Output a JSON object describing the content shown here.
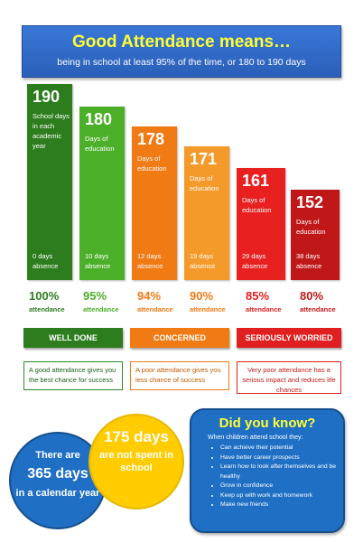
{
  "header": {
    "title": "Good Attendance means…",
    "subtitle": "being in school at least 95% of the time, or 180 to 190 days"
  },
  "bars": [
    {
      "days": "190",
      "desc": "School days in each academic year",
      "absence": "0 days absence",
      "pct": "100%",
      "attendance": "attendance",
      "color": "#2d7d1e",
      "pct_color": "#2d7d1e"
    },
    {
      "days": "180",
      "desc": "Days of education",
      "absence": "10 days absence",
      "pct": "95%",
      "attendance": "attendance",
      "color": "#4caf2a",
      "pct_color": "#4caf2a"
    },
    {
      "days": "178",
      "desc": "Days of education",
      "absence": "12 days absence",
      "pct": "94%",
      "attendance": "attendance",
      "color": "#f07a14",
      "pct_color": "#f07a14"
    },
    {
      "days": "171",
      "desc": "Days of education",
      "absence": "19 days absence",
      "pct": "90%",
      "attendance": "attendance",
      "color": "#f49a2a",
      "pct_color": "#f07a14"
    },
    {
      "days": "161",
      "desc": "Days of education",
      "absence": "29 days absence",
      "pct": "85%",
      "attendance": "attendance",
      "color": "#e82020",
      "pct_color": "#e02020"
    },
    {
      "days": "152",
      "desc": "Days of education",
      "absence": "38 days absence",
      "pct": "80%",
      "attendance": "attendance",
      "color": "#c01818",
      "pct_color": "#c01818"
    }
  ],
  "categories": [
    {
      "label": "WELL DONE",
      "message": "A good attendance gives you the best chance for success"
    },
    {
      "label": "CONCERNED",
      "message": "A poor attendance gives you less chance of success"
    },
    {
      "label": "SERIOUSLY WORRIED",
      "message": "Very poor attendance has a serious impact and reduces life chances"
    }
  ],
  "circle_blue": {
    "line1": "There are",
    "line2": "365 days",
    "line3": "in a calendar year"
  },
  "circle_yellow": {
    "line1": "175 days",
    "line2": "are not spent in school"
  },
  "did_you_know": {
    "title": "Did you know?",
    "intro": "When children attend school they:",
    "items": [
      "Can achieve their potential",
      "Have better career prospects",
      "Learn how to look after themselves and be healthy",
      "Grow in confidence",
      "Keep up with work and homework",
      "Make new friends"
    ]
  }
}
